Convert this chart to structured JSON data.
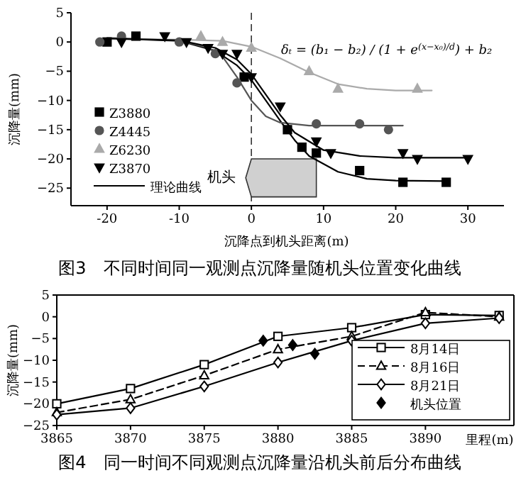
{
  "chart_data": [
    {
      "type": "scatter",
      "title": "图3　不同时间同一观测点沉降量随机头位置变化曲线",
      "xlabel": "沉降点到机头距离(m)",
      "ylabel": "沉降量(mm)",
      "xlim": [
        -25,
        35
      ],
      "ylim": [
        -28,
        5
      ],
      "xticks": [
        -20,
        -10,
        0,
        10,
        20,
        30
      ],
      "yticks": [
        5,
        0,
        -5,
        -10,
        -15,
        -20,
        -25
      ],
      "legend": "left",
      "ref_lines": [
        {
          "axis": "x",
          "value": 0,
          "line_style": "dashed",
          "color": "#333333"
        }
      ],
      "annotations": [
        "δₜ = (b₁ − b₂) / (1 + e$^{(x−x₀)/d}$) + b₂",
        "机头"
      ],
      "series": [
        {
          "name": "Z3880",
          "marker": "square",
          "color": "#000000",
          "x": [
            -20,
            -16,
            -1,
            5,
            7,
            9,
            15,
            21,
            27
          ],
          "values": [
            0,
            1,
            -6,
            -15,
            -18,
            -19,
            -22,
            -24,
            -24
          ]
        },
        {
          "name": "Z4445",
          "marker": "circle",
          "color": "#555555",
          "x": [
            -21,
            -18,
            -10,
            -5,
            -2,
            9,
            15,
            19
          ],
          "values": [
            0,
            1,
            0,
            -2,
            -7,
            -14,
            -14,
            -15
          ]
        },
        {
          "name": "Z6230",
          "marker": "triangle",
          "color": "#aaaaaa",
          "x": [
            -7,
            -4,
            0,
            8,
            12,
            23
          ],
          "values": [
            1,
            0,
            -1,
            -5,
            -8,
            -8
          ]
        },
        {
          "name": "Z3870",
          "marker": "triangle-down",
          "color": "#000000",
          "x": [
            -18,
            -12,
            -9,
            -6,
            -4,
            -2,
            0,
            4,
            9,
            11,
            21,
            23,
            30
          ],
          "values": [
            0,
            1,
            0,
            -1,
            -2,
            -2,
            -6,
            -11,
            -17,
            -19,
            -19,
            -20,
            -20
          ]
        },
        {
          "name": "理论曲线",
          "type": "line",
          "color": "#000000",
          "x": [
            -20,
            -10,
            -5,
            -2,
            0,
            2,
            4,
            6,
            8,
            12,
            16,
            20,
            27
          ],
          "values": [
            0.6,
            0.2,
            -1.5,
            -4,
            -6.5,
            -10,
            -13.5,
            -16.8,
            -19.5,
            -22.2,
            -23.4,
            -23.7,
            -23.8
          ]
        },
        {
          "type": "line",
          "color": "#555555",
          "x": [
            -20,
            -10,
            -6,
            -4,
            -2,
            0,
            2,
            4,
            8,
            21
          ],
          "values": [
            0.7,
            0.3,
            -1,
            -2.5,
            -6,
            -10,
            -12.7,
            -13.8,
            -14.3,
            -14.3
          ]
        },
        {
          "type": "line",
          "color": "#aaaaaa",
          "x": [
            -20,
            -10,
            -4,
            0,
            4,
            8,
            12,
            16,
            20,
            25
          ],
          "values": [
            0.5,
            0.4,
            0.2,
            -0.8,
            -2.8,
            -5.2,
            -7.2,
            -8,
            -8.3,
            -8.3
          ]
        },
        {
          "type": "line",
          "color": "#000000",
          "x": [
            -20,
            -10,
            -5,
            -2,
            0,
            2,
            4,
            6,
            10,
            15,
            20,
            30
          ],
          "values": [
            0.6,
            0.3,
            -1,
            -3,
            -5.5,
            -9,
            -12.5,
            -15.5,
            -18.5,
            -19.5,
            -19.8,
            -19.8
          ]
        }
      ]
    },
    {
      "type": "line",
      "title": "图4　同一时间不同观测点沉降量沿机头前后分布曲线",
      "xlabel": "里程(m)",
      "ylabel": "沉降量(mm)",
      "xlim": [
        3865,
        3896
      ],
      "ylim": [
        -25,
        5
      ],
      "xticks": [
        3865,
        3870,
        3875,
        3880,
        3885,
        3890
      ],
      "yticks": [
        5,
        0,
        -5,
        -10,
        -15,
        -20,
        -25
      ],
      "legend": "bottom right",
      "series": [
        {
          "name": "8月14日",
          "marker": "square",
          "line_style": "solid",
          "color": "#000000",
          "x": [
            3865,
            3870,
            3875,
            3880,
            3885,
            3890,
            3895
          ],
          "values": [
            -20,
            -16.5,
            -11,
            -4.5,
            -2.5,
            0.5,
            0.3
          ]
        },
        {
          "name": "8月16日",
          "marker": "triangle",
          "line_style": "dashed",
          "color": "#000000",
          "x": [
            3865,
            3870,
            3875,
            3880,
            3885,
            3890,
            3895
          ],
          "values": [
            -22,
            -19,
            -13.5,
            -7.5,
            -4.5,
            1,
            0
          ]
        },
        {
          "name": "8月21日",
          "marker": "diamond",
          "line_style": "solid",
          "color": "#000000",
          "x": [
            3865,
            3870,
            3875,
            3880,
            3885,
            3890,
            3895
          ],
          "values": [
            -22.5,
            -21,
            -16,
            -10.5,
            -5.5,
            -1.5,
            -0.3
          ]
        },
        {
          "name": "机头位置",
          "type": "scatter",
          "marker": "diamond",
          "color": "#000000",
          "x": [
            3879,
            3881,
            3882.5
          ],
          "values": [
            -5.5,
            -6.5,
            -8.5
          ]
        }
      ]
    }
  ]
}
